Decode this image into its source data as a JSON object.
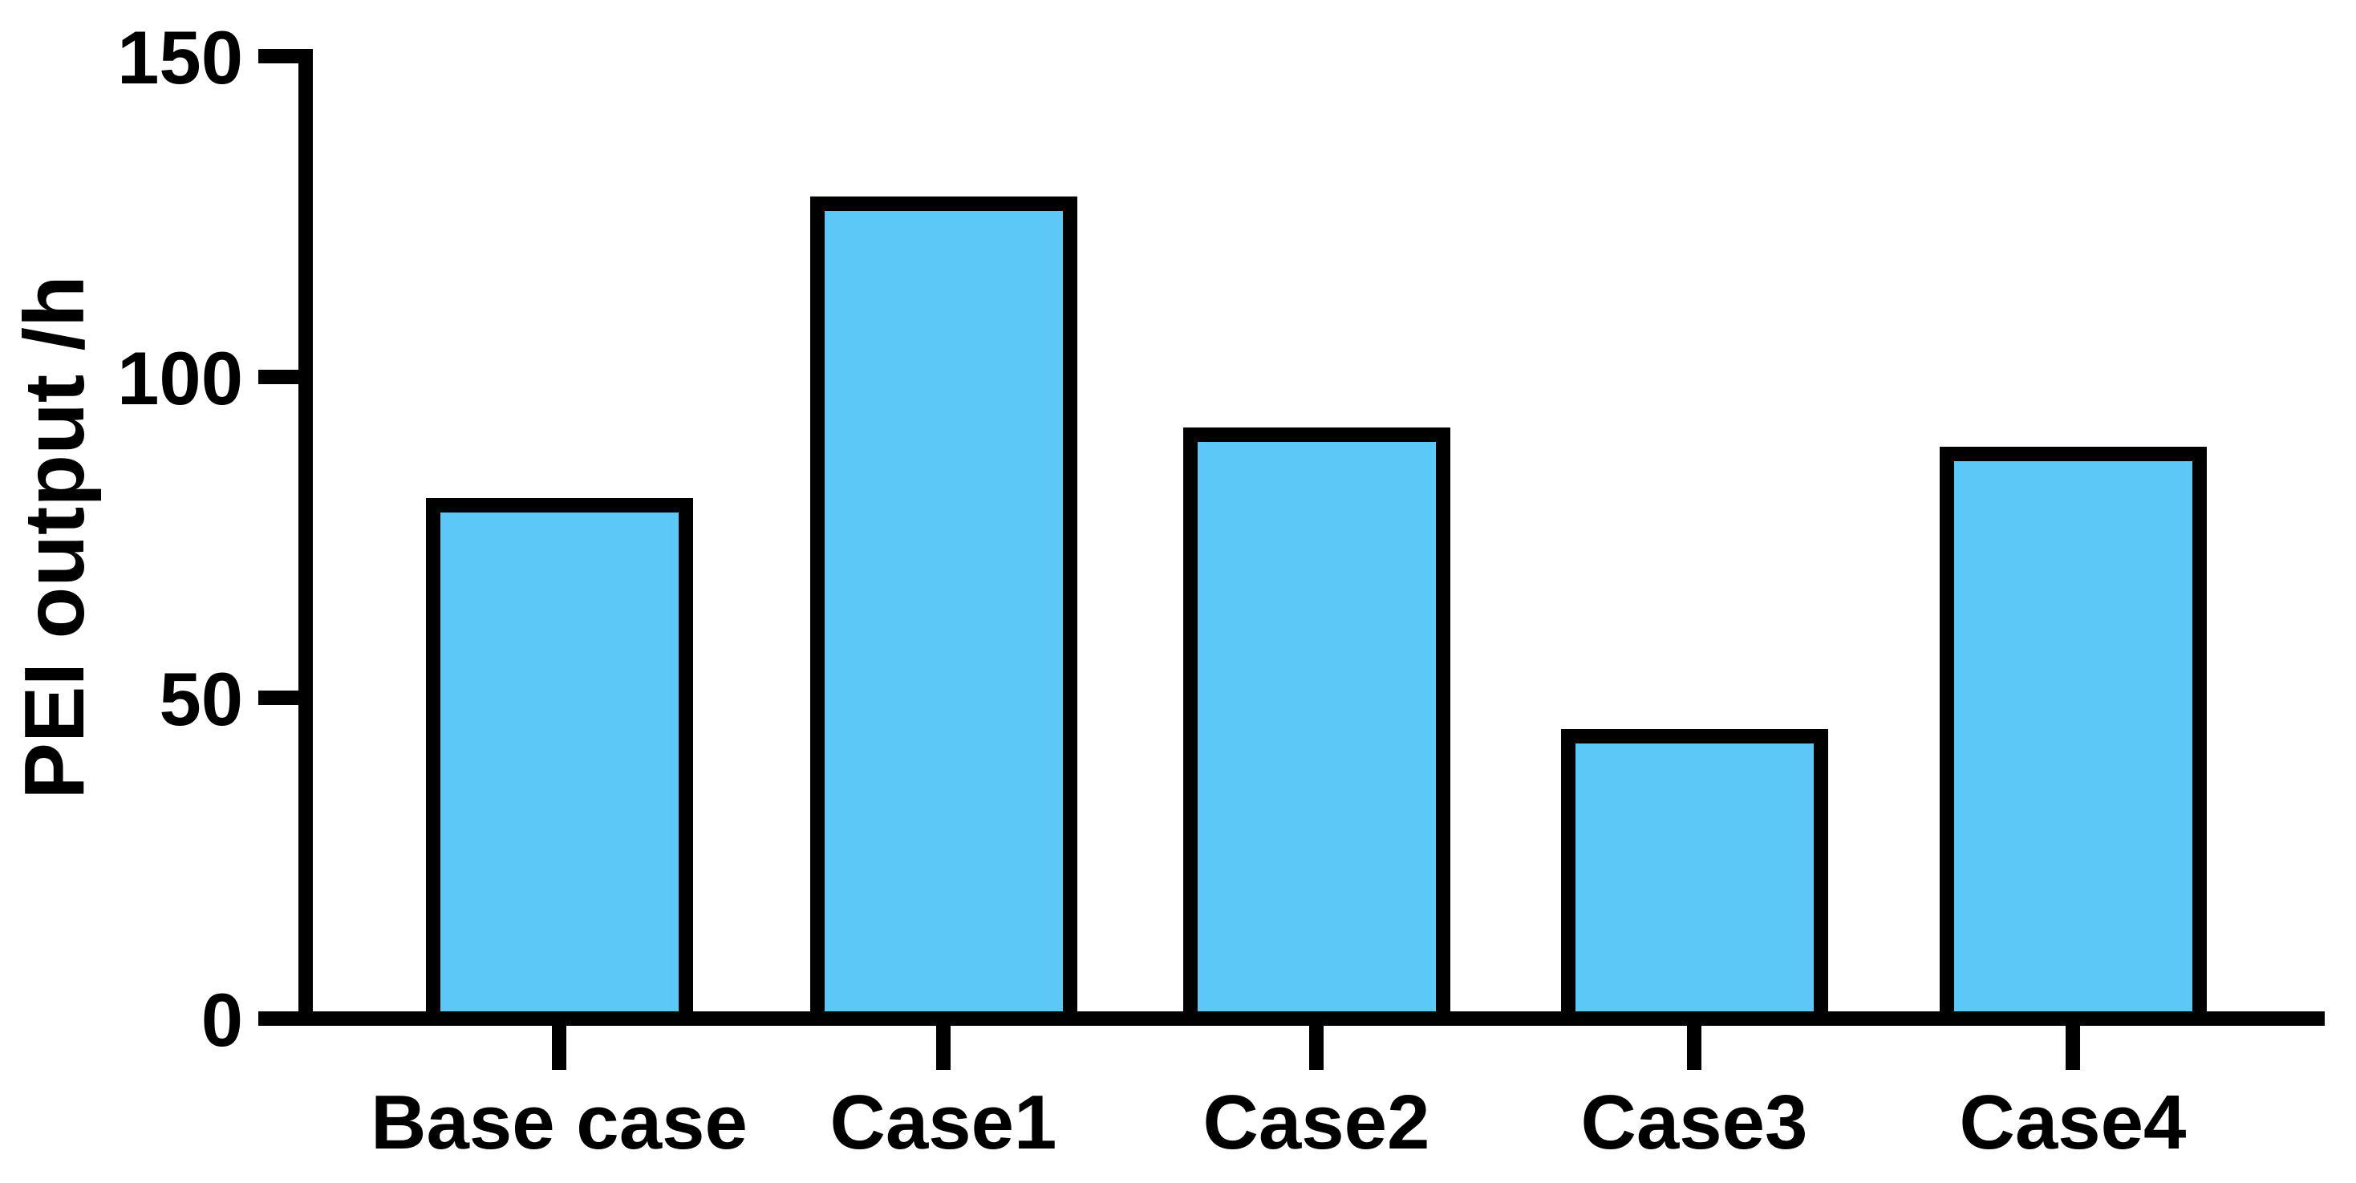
{
  "chart_data": {
    "type": "bar",
    "title": "",
    "xlabel": "",
    "ylabel": "PEI output /h",
    "categories": [
      "Base case",
      "Case1",
      "Case2",
      "Case3",
      "Case4"
    ],
    "values": [
      80,
      127,
      91,
      44,
      88
    ],
    "series": [
      {
        "name": "PEI output /h",
        "values": [
          80,
          127,
          91,
          44,
          88
        ]
      }
    ],
    "ylim": [
      0,
      150
    ],
    "yticks": [
      0,
      50,
      100,
      150
    ],
    "ytick_labels_top_to_bottom": [
      "150",
      "100",
      "50",
      "0"
    ],
    "grid": false,
    "legend": "none",
    "colors": {
      "bar_fill": "#5CC8F7",
      "bar_border": "#000000",
      "axis": "#000000",
      "text": "#000000",
      "background": "#ffffff"
    }
  }
}
